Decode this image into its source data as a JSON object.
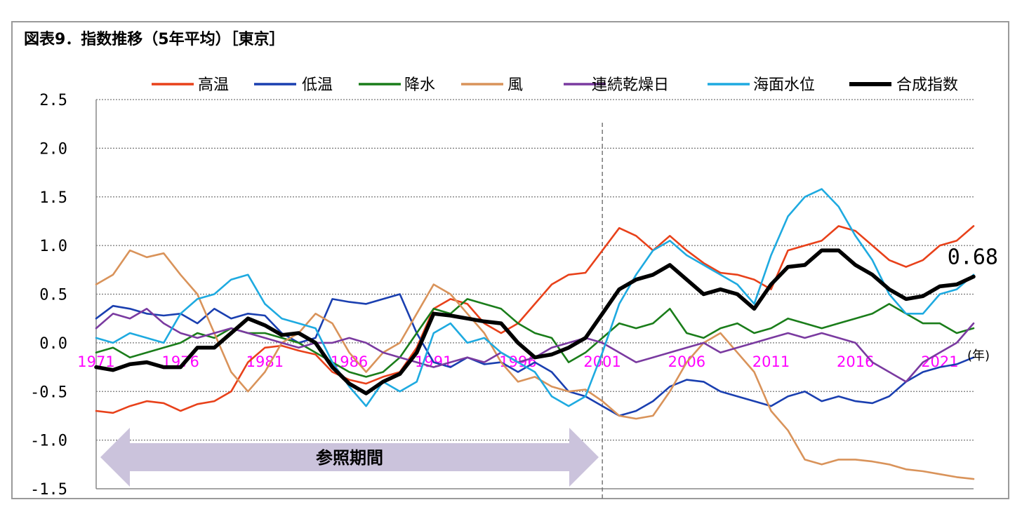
{
  "title": "図表9．指数推移（5年平均）［東京］",
  "chart_data": {
    "type": "line",
    "x_label_unit": "(年)",
    "x_ticks": [
      "1971",
      "1976",
      "1981",
      "1986",
      "1991",
      "1996",
      "2001",
      "2006",
      "2011",
      "2016",
      "2021"
    ],
    "x_range": [
      1971,
      2023
    ],
    "y_range": [
      -1.5,
      2.5
    ],
    "y_ticks": [
      "2.5",
      "2.0",
      "1.5",
      "1.0",
      "0.5",
      "0.0",
      "-0.5",
      "-1.0",
      "-1.5"
    ],
    "y_tick_values": [
      2.5,
      2.0,
      1.5,
      1.0,
      0.5,
      0.0,
      -0.5,
      -1.0,
      -1.5
    ],
    "grid": "horizontal dotted",
    "divider_year": 2001,
    "reference_period": {
      "label": "参照期間",
      "start": 1971,
      "end": 2001
    },
    "end_label": "0.68",
    "legend_position": "top",
    "series": [
      {
        "name": "高温",
        "color": "#e8411a",
        "x": [
          1971,
          1972,
          1973,
          1974,
          1975,
          1976,
          1977,
          1978,
          1979,
          1980,
          1981,
          1982,
          1983,
          1984,
          1985,
          1986,
          1987,
          1988,
          1989,
          1990,
          1991,
          1992,
          1993,
          1994,
          1995,
          1996,
          1997,
          1998,
          1999,
          2000,
          2001,
          2002,
          2003,
          2004,
          2005,
          2006,
          2007,
          2008,
          2009,
          2010,
          2011,
          2012,
          2013,
          2014,
          2015,
          2016,
          2017,
          2018,
          2019,
          2020,
          2021,
          2022,
          2023
        ],
        "y": [
          -0.7,
          -0.72,
          -0.65,
          -0.6,
          -0.62,
          -0.7,
          -0.63,
          -0.6,
          -0.5,
          -0.2,
          -0.05,
          -0.03,
          -0.08,
          -0.12,
          -0.3,
          -0.38,
          -0.42,
          -0.35,
          -0.3,
          -0.05,
          0.35,
          0.45,
          0.4,
          0.2,
          0.1,
          0.2,
          0.4,
          0.6,
          0.7,
          0.72,
          0.95,
          1.18,
          1.1,
          0.95,
          1.1,
          0.95,
          0.82,
          0.72,
          0.7,
          0.65,
          0.55,
          0.95,
          1.0,
          1.05,
          1.2,
          1.15,
          1.0,
          0.85,
          0.78,
          0.85,
          1.0,
          1.05,
          1.2
        ]
      },
      {
        "name": "低温",
        "color": "#1a3fb0",
        "x": [
          1971,
          1972,
          1973,
          1974,
          1975,
          1976,
          1977,
          1978,
          1979,
          1980,
          1981,
          1982,
          1983,
          1984,
          1985,
          1986,
          1987,
          1988,
          1989,
          1990,
          1991,
          1992,
          1993,
          1994,
          1995,
          1996,
          1997,
          1998,
          1999,
          2000,
          2001,
          2002,
          2003,
          2004,
          2005,
          2006,
          2007,
          2008,
          2009,
          2010,
          2011,
          2012,
          2013,
          2014,
          2015,
          2016,
          2017,
          2018,
          2019,
          2020,
          2021,
          2022,
          2023
        ],
        "y": [
          0.25,
          0.38,
          0.35,
          0.3,
          0.28,
          0.3,
          0.2,
          0.35,
          0.25,
          0.3,
          0.28,
          0.1,
          0.0,
          0.05,
          0.45,
          0.42,
          0.4,
          0.45,
          0.5,
          0.1,
          -0.2,
          -0.25,
          -0.15,
          -0.22,
          -0.2,
          -0.3,
          -0.2,
          -0.3,
          -0.5,
          -0.55,
          -0.65,
          -0.75,
          -0.7,
          -0.6,
          -0.45,
          -0.38,
          -0.4,
          -0.5,
          -0.55,
          -0.6,
          -0.65,
          -0.55,
          -0.5,
          -0.6,
          -0.55,
          -0.6,
          -0.62,
          -0.55,
          -0.4,
          -0.3,
          -0.25,
          -0.22,
          -0.15
        ]
      },
      {
        "name": "降水",
        "color": "#1a7d1a",
        "x": [
          1971,
          1972,
          1973,
          1974,
          1975,
          1976,
          1977,
          1978,
          1979,
          1980,
          1981,
          1982,
          1983,
          1984,
          1985,
          1986,
          1987,
          1988,
          1989,
          1990,
          1991,
          1992,
          1993,
          1994,
          1995,
          1996,
          1997,
          1998,
          1999,
          2000,
          2001,
          2002,
          2003,
          2004,
          2005,
          2006,
          2007,
          2008,
          2009,
          2010,
          2011,
          2012,
          2013,
          2014,
          2015,
          2016,
          2017,
          2018,
          2019,
          2020,
          2021,
          2022,
          2023
        ],
        "y": [
          -0.1,
          -0.05,
          -0.15,
          -0.1,
          -0.05,
          0.0,
          0.1,
          0.05,
          0.15,
          0.1,
          0.1,
          0.05,
          0.0,
          -0.1,
          -0.2,
          -0.3,
          -0.35,
          -0.3,
          -0.15,
          0.1,
          0.35,
          0.3,
          0.45,
          0.4,
          0.35,
          0.2,
          0.1,
          0.05,
          -0.2,
          -0.1,
          0.05,
          0.2,
          0.15,
          0.2,
          0.35,
          0.1,
          0.05,
          0.15,
          0.2,
          0.1,
          0.15,
          0.25,
          0.2,
          0.15,
          0.2,
          0.25,
          0.3,
          0.4,
          0.3,
          0.2,
          0.2,
          0.1,
          0.15
        ]
      },
      {
        "name": "風",
        "color": "#d9935a",
        "x": [
          1971,
          1972,
          1973,
          1974,
          1975,
          1976,
          1977,
          1978,
          1979,
          1980,
          1981,
          1982,
          1983,
          1984,
          1985,
          1986,
          1987,
          1988,
          1989,
          1990,
          1991,
          1992,
          1993,
          1994,
          1995,
          1996,
          1997,
          1998,
          1999,
          2000,
          2001,
          2002,
          2003,
          2004,
          2005,
          2006,
          2007,
          2008,
          2009,
          2010,
          2011,
          2012,
          2013,
          2014,
          2015,
          2016,
          2017,
          2018,
          2019,
          2020,
          2021,
          2022,
          2023
        ],
        "y": [
          0.6,
          0.7,
          0.95,
          0.88,
          0.92,
          0.7,
          0.5,
          0.1,
          -0.3,
          -0.5,
          -0.3,
          0.0,
          0.1,
          0.3,
          0.2,
          -0.1,
          -0.3,
          -0.1,
          0.0,
          0.3,
          0.6,
          0.5,
          0.3,
          0.1,
          -0.2,
          -0.4,
          -0.35,
          -0.45,
          -0.5,
          -0.48,
          -0.6,
          -0.75,
          -0.78,
          -0.75,
          -0.5,
          -0.2,
          0.0,
          0.1,
          -0.1,
          -0.3,
          -0.7,
          -0.9,
          -1.2,
          -1.25,
          -1.2,
          -1.2,
          -1.22,
          -1.25,
          -1.3,
          -1.32,
          -1.35,
          -1.38,
          -1.4
        ]
      },
      {
        "name": "連続乾燥日",
        "color": "#7a3aa0",
        "x": [
          1971,
          1972,
          1973,
          1974,
          1975,
          1976,
          1977,
          1978,
          1979,
          1980,
          1981,
          1982,
          1983,
          1984,
          1985,
          1986,
          1987,
          1988,
          1989,
          1990,
          1991,
          1992,
          1993,
          1994,
          1995,
          1996,
          1997,
          1998,
          1999,
          2000,
          2001,
          2002,
          2003,
          2004,
          2005,
          2006,
          2007,
          2008,
          2009,
          2010,
          2011,
          2012,
          2013,
          2014,
          2015,
          2016,
          2017,
          2018,
          2019,
          2020,
          2021,
          2022,
          2023
        ],
        "y": [
          0.15,
          0.3,
          0.25,
          0.35,
          0.2,
          0.1,
          0.05,
          0.1,
          0.15,
          0.1,
          0.05,
          0.0,
          -0.05,
          0.0,
          0.0,
          0.05,
          0.0,
          -0.1,
          -0.15,
          -0.2,
          -0.25,
          -0.2,
          -0.15,
          -0.2,
          -0.1,
          -0.2,
          -0.15,
          -0.05,
          0.0,
          0.05,
          0.0,
          -0.1,
          -0.2,
          -0.15,
          -0.1,
          -0.05,
          0.0,
          -0.1,
          -0.05,
          0.0,
          0.05,
          0.1,
          0.05,
          0.1,
          0.05,
          0.0,
          -0.2,
          -0.3,
          -0.4,
          -0.2,
          -0.1,
          0.0,
          0.2
        ]
      },
      {
        "name": "海面水位",
        "color": "#1eaae0",
        "x": [
          1971,
          1972,
          1973,
          1974,
          1975,
          1976,
          1977,
          1978,
          1979,
          1980,
          1981,
          1982,
          1983,
          1984,
          1985,
          1986,
          1987,
          1988,
          1989,
          1990,
          1991,
          1992,
          1993,
          1994,
          1995,
          1996,
          1997,
          1998,
          1999,
          2000,
          2001,
          2002,
          2003,
          2004,
          2005,
          2006,
          2007,
          2008,
          2009,
          2010,
          2011,
          2012,
          2013,
          2014,
          2015,
          2016,
          2017,
          2018,
          2019,
          2020,
          2021,
          2022,
          2023
        ],
        "y": [
          0.05,
          0.0,
          0.1,
          0.05,
          0.0,
          0.3,
          0.45,
          0.5,
          0.65,
          0.7,
          0.4,
          0.25,
          0.2,
          0.15,
          -0.2,
          -0.45,
          -0.65,
          -0.4,
          -0.5,
          -0.4,
          0.1,
          0.2,
          0.0,
          0.05,
          -0.1,
          -0.2,
          -0.3,
          -0.55,
          -0.65,
          -0.55,
          -0.1,
          0.4,
          0.7,
          0.95,
          1.05,
          0.9,
          0.8,
          0.7,
          0.6,
          0.4,
          0.9,
          1.3,
          1.5,
          1.58,
          1.4,
          1.1,
          0.85,
          0.5,
          0.3,
          0.3,
          0.5,
          0.55,
          0.7
        ]
      },
      {
        "name": "合成指数",
        "color": "#000000",
        "x": [
          1971,
          1972,
          1973,
          1974,
          1975,
          1976,
          1977,
          1978,
          1979,
          1980,
          1981,
          1982,
          1983,
          1984,
          1985,
          1986,
          1987,
          1988,
          1989,
          1990,
          1991,
          1992,
          1993,
          1994,
          1995,
          1996,
          1997,
          1998,
          1999,
          2000,
          2001,
          2002,
          2003,
          2004,
          2005,
          2006,
          2007,
          2008,
          2009,
          2010,
          2011,
          2012,
          2013,
          2014,
          2015,
          2016,
          2017,
          2018,
          2019,
          2020,
          2021,
          2022,
          2023
        ],
        "y": [
          -0.25,
          -0.28,
          -0.22,
          -0.2,
          -0.25,
          -0.25,
          -0.05,
          -0.05,
          0.1,
          0.25,
          0.18,
          0.08,
          0.1,
          0.0,
          -0.25,
          -0.42,
          -0.52,
          -0.4,
          -0.32,
          -0.1,
          0.3,
          0.28,
          0.25,
          0.22,
          0.2,
          0.0,
          -0.15,
          -0.12,
          -0.05,
          0.05,
          0.3,
          0.55,
          0.65,
          0.7,
          0.8,
          0.65,
          0.5,
          0.55,
          0.5,
          0.35,
          0.6,
          0.78,
          0.8,
          0.95,
          0.95,
          0.8,
          0.7,
          0.55,
          0.45,
          0.48,
          0.58,
          0.6,
          0.68
        ]
      }
    ]
  }
}
